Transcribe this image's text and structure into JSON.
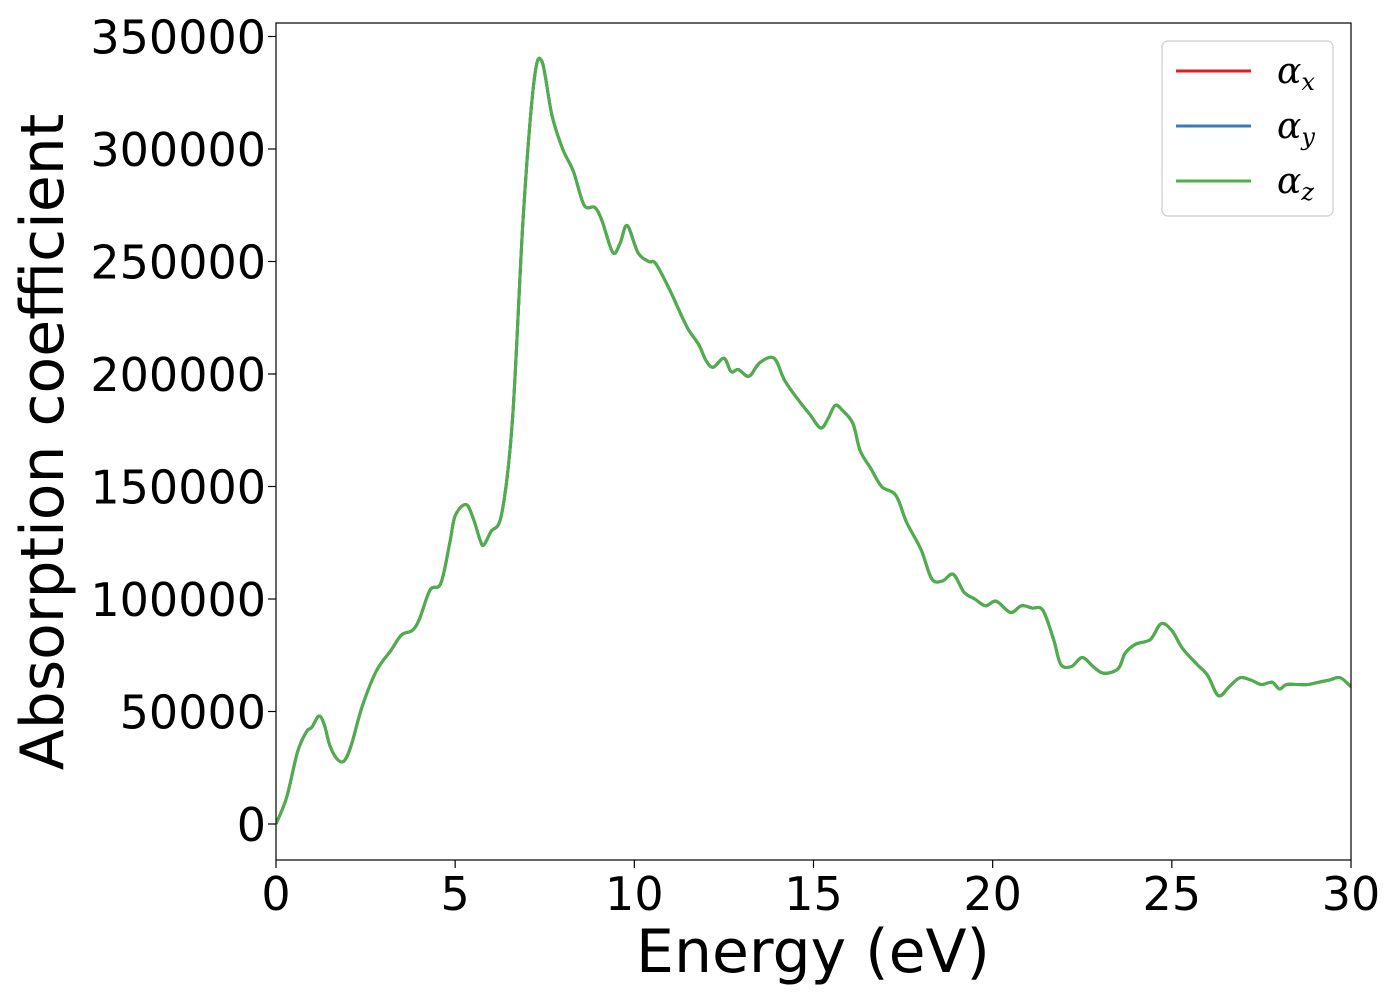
{
  "chart_data": {
    "type": "line",
    "xlabel": "Energy (eV)",
    "ylabel": "Absorption coefficient",
    "xlim": [
      0,
      30
    ],
    "ylim": [
      -16000,
      356000
    ],
    "xticks": [
      0,
      5,
      10,
      15,
      20,
      25,
      30
    ],
    "xtick_labels": [
      "0",
      "5",
      "10",
      "15",
      "20",
      "25",
      "30"
    ],
    "yticks": [
      0,
      50000,
      100000,
      150000,
      200000,
      250000,
      300000,
      350000
    ],
    "ytick_labels": [
      "0",
      "50000",
      "100000",
      "150000",
      "200000",
      "250000",
      "300000",
      "350000"
    ],
    "grid": false,
    "legend_position": "top-right",
    "series": [
      {
        "name": "α",
        "subscript": "x",
        "color": "#e41a1c"
      },
      {
        "name": "α",
        "subscript": "y",
        "color": "#377eb8"
      },
      {
        "name": "α",
        "subscript": "z",
        "color": "#4daf4a"
      }
    ],
    "x": [
      0,
      0.3,
      0.6,
      0.85,
      1.0,
      1.2,
      1.35,
      1.5,
      1.7,
      1.9,
      2.1,
      2.4,
      2.8,
      3.2,
      3.5,
      3.8,
      4.0,
      4.3,
      4.6,
      4.85,
      5.0,
      5.3,
      5.5,
      5.7,
      5.8,
      6.0,
      6.3,
      6.6,
      6.9,
      7.2,
      7.42,
      7.7,
      8.0,
      8.3,
      8.6,
      8.9,
      9.1,
      9.4,
      9.6,
      9.8,
      10.1,
      10.4,
      10.6,
      11.0,
      11.2,
      11.5,
      11.8,
      12.0,
      12.2,
      12.5,
      12.7,
      12.9,
      13.2,
      13.5,
      13.9,
      14.2,
      14.6,
      14.9,
      15.2,
      15.4,
      15.6,
      15.8,
      16.1,
      16.3,
      16.6,
      16.9,
      17.3,
      17.6,
      18.0,
      18.3,
      18.6,
      18.9,
      19.2,
      19.5,
      19.8,
      20.1,
      20.5,
      20.8,
      21.1,
      21.4,
      21.7,
      21.9,
      22.2,
      22.5,
      22.8,
      23.1,
      23.5,
      23.7,
      24.0,
      24.4,
      24.7,
      25.0,
      25.3,
      25.7,
      26.0,
      26.3,
      26.6,
      26.9,
      27.2,
      27.5,
      27.8,
      28.0,
      28.2,
      28.5,
      28.8,
      29.1,
      29.4,
      29.7,
      30.0
    ],
    "y": [
      0,
      12000,
      32000,
      41000,
      43000,
      48000,
      44000,
      35000,
      29000,
      28000,
      35000,
      52000,
      68000,
      77000,
      84000,
      86000,
      91000,
      104000,
      107000,
      125000,
      137000,
      142000,
      136000,
      126000,
      124000,
      130000,
      138000,
      180000,
      270000,
      330000,
      339000,
      315000,
      300000,
      290000,
      275000,
      274000,
      268000,
      254000,
      258000,
      266000,
      254000,
      250000,
      249000,
      237000,
      230000,
      220000,
      213000,
      206000,
      203000,
      207000,
      201000,
      202000,
      199000,
      205000,
      207000,
      197000,
      188000,
      182000,
      176000,
      180000,
      186000,
      184000,
      178000,
      166000,
      158000,
      150000,
      146000,
      134000,
      122000,
      109000,
      108000,
      111000,
      103000,
      100000,
      97000,
      99000,
      94000,
      97000,
      96000,
      95000,
      82000,
      71000,
      70000,
      74000,
      70000,
      67000,
      69000,
      76000,
      80000,
      82000,
      89000,
      86000,
      78000,
      71000,
      66000,
      57000,
      61000,
      65000,
      64000,
      62000,
      63000,
      60000,
      62000,
      62000,
      62000,
      63000,
      64000,
      65000,
      61000
    ]
  }
}
